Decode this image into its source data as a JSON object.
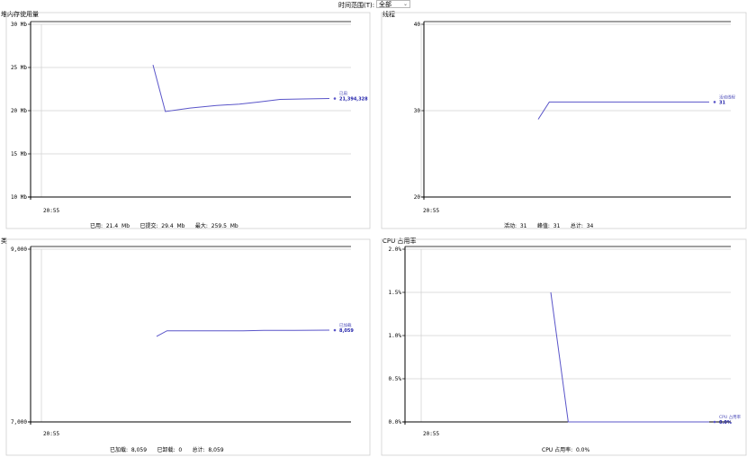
{
  "toolbar": {
    "time_range_label": "时间范围(T):",
    "time_range_value": "全部"
  },
  "colors": {
    "series": "#5a55c9",
    "grid": "#d0d0d0",
    "axis": "#000000",
    "panel_border": "#cfcfcf"
  },
  "chart_data": [
    {
      "type": "line",
      "title": "堆内存使用量",
      "y_ticks": [
        "30 Mb",
        "25 Mb",
        "20 Mb",
        "15 Mb",
        "10 Mb"
      ],
      "ylim": [
        10,
        30
      ],
      "x_tick": "20:55",
      "series": [
        {
          "name": "已用",
          "last_value_label": "21,394,328",
          "points": [
            [
              0.0,
              25.3
            ],
            [
              0.07,
              19.9
            ],
            [
              0.21,
              20.3
            ],
            [
              0.36,
              20.6
            ],
            [
              0.49,
              20.75
            ],
            [
              0.6,
              21.0
            ],
            [
              0.72,
              21.3
            ],
            [
              0.85,
              21.35
            ],
            [
              1.0,
              21.4
            ]
          ]
        }
      ],
      "footer": [
        {
          "label": "已用:",
          "value": "21.4  Mb"
        },
        {
          "label": "已提交:",
          "value": "29.4  Mb"
        },
        {
          "label": "最大:",
          "value": "259.5  Mb"
        }
      ]
    },
    {
      "type": "line",
      "title": "线程",
      "y_ticks": [
        "40",
        "30",
        "20"
      ],
      "ylim": [
        20,
        40
      ],
      "x_tick": "20:55",
      "series": [
        {
          "name": "活动线程",
          "last_value_label": "31",
          "points": [
            [
              0.0,
              29.0
            ],
            [
              0.065,
              31.0
            ],
            [
              1.0,
              31.0
            ]
          ]
        }
      ],
      "footer": [
        {
          "label": "活动:",
          "value": "31"
        },
        {
          "label": "峰值:",
          "value": "31"
        },
        {
          "label": "总计:",
          "value": "34"
        }
      ]
    },
    {
      "type": "line",
      "title": "类",
      "y_ticks": [
        "9,000",
        "7,000"
      ],
      "ylim": [
        7000,
        9000
      ],
      "x_tick": "20:55",
      "series": [
        {
          "name": "已加载",
          "last_value_label": "8,059",
          "points": [
            [
              0.0,
              7990
            ],
            [
              0.06,
              8055
            ],
            [
              0.5,
              8055
            ],
            [
              0.62,
              8060
            ],
            [
              0.8,
              8060
            ],
            [
              1.0,
              8062
            ]
          ]
        }
      ],
      "footer": [
        {
          "label": "已加载:",
          "value": "8,059"
        },
        {
          "label": "已卸载:",
          "value": "0"
        },
        {
          "label": "总计:",
          "value": "8,059"
        }
      ]
    },
    {
      "type": "line",
      "title": "CPU 占用率",
      "y_ticks": [
        "2.0%",
        "1.5%",
        "1.0%",
        "0.5%",
        "0.0%"
      ],
      "ylim": [
        0,
        2
      ],
      "x_tick": "20:55",
      "series": [
        {
          "name": "CPU 占用率",
          "last_value_label": "0.0%",
          "points": [
            [
              0.0,
              1.5
            ],
            [
              0.11,
              0.0
            ],
            [
              1.0,
              0.0
            ]
          ]
        }
      ],
      "footer": [
        {
          "label": "CPU 占用率:",
          "value": "0.0%"
        }
      ]
    }
  ]
}
